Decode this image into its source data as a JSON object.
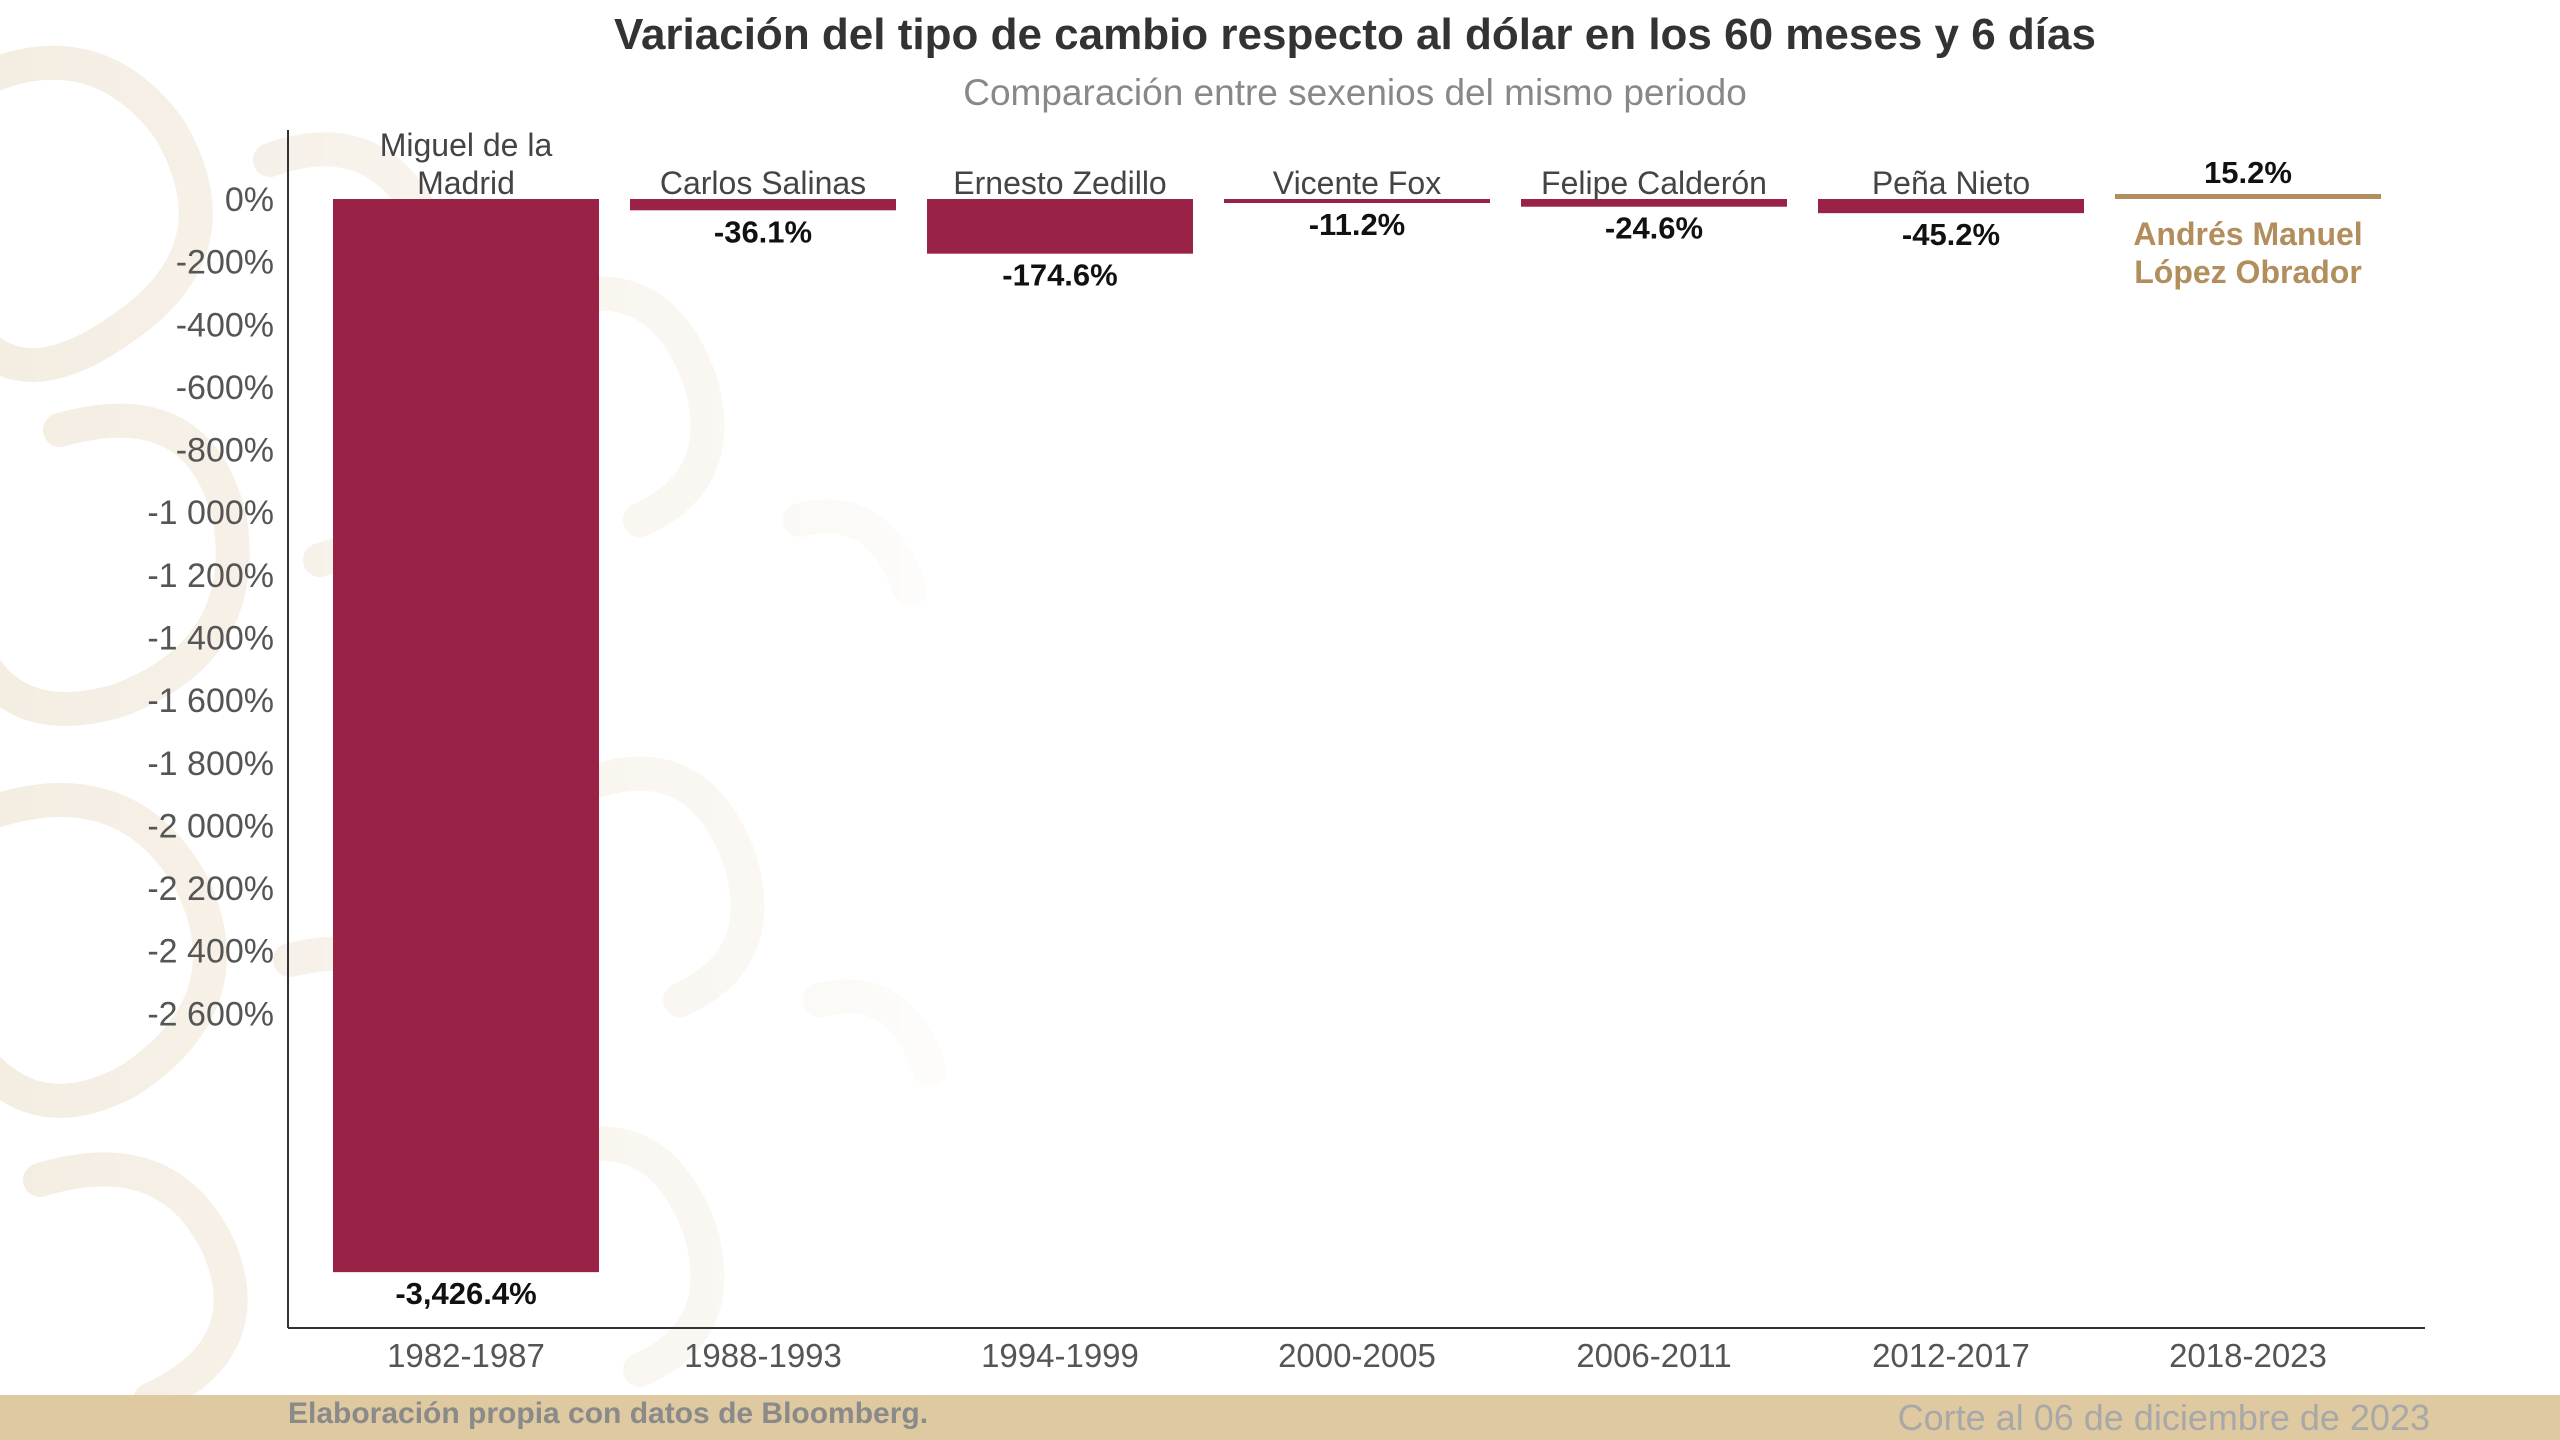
{
  "title": "Variación del tipo de cambio respecto al dólar en los 60 meses y 6 días",
  "subtitle": "Comparación entre sexenios del mismo periodo",
  "footer": {
    "source": "Elaboración propia con datos de Bloomberg.",
    "date": "Corte al 06 de diciembre de 2023"
  },
  "colors": {
    "bar": "#9b2247",
    "highlight": "#b38e5d",
    "axis": "#333333",
    "footer_bg": "#dfc9a0"
  },
  "chart_data": {
    "type": "bar",
    "title": "Variación del tipo de cambio respecto al dólar en los 60 meses y 6 días",
    "subtitle": "Comparación entre sexenios del mismo periodo",
    "xlabel": "",
    "ylabel": "",
    "ylim": [
      -3600,
      200
    ],
    "grid": false,
    "categories": [
      "1982-1987",
      "1988-1993",
      "1994-1999",
      "2000-2005",
      "2006-2011",
      "2012-2017",
      "2018-2023"
    ],
    "names": [
      "Miguel de la Madrid",
      "Carlos Salinas",
      "Ernesto Zedillo",
      "Vicente Fox",
      "Felipe Calderón",
      "Peña Nieto",
      "Andrés Manuel López Obrador"
    ],
    "values": [
      -3426.4,
      -36.1,
      -174.6,
      -11.2,
      -24.6,
      -45.2,
      15.2
    ],
    "value_labels": [
      "-3,426.4%",
      "-36.1%",
      "-174.6%",
      "-11.2%",
      "-24.6%",
      "-45.2%",
      "15.2%"
    ],
    "highlight_index": 6,
    "yticks": [
      0,
      -200,
      -400,
      -600,
      -800,
      -1000,
      -1200,
      -1400,
      -1600,
      -1800,
      -2000,
      -2200,
      -2400,
      -2600
    ],
    "ytick_labels": [
      "0%",
      "-200%",
      "-400%",
      "-600%",
      "-800%",
      "-1 000%",
      "-1 200%",
      "-1 400%",
      "-1 600%",
      "-1 800%",
      "-2 000%",
      "-2 200%",
      "-2 400%",
      "-2 600%"
    ]
  }
}
